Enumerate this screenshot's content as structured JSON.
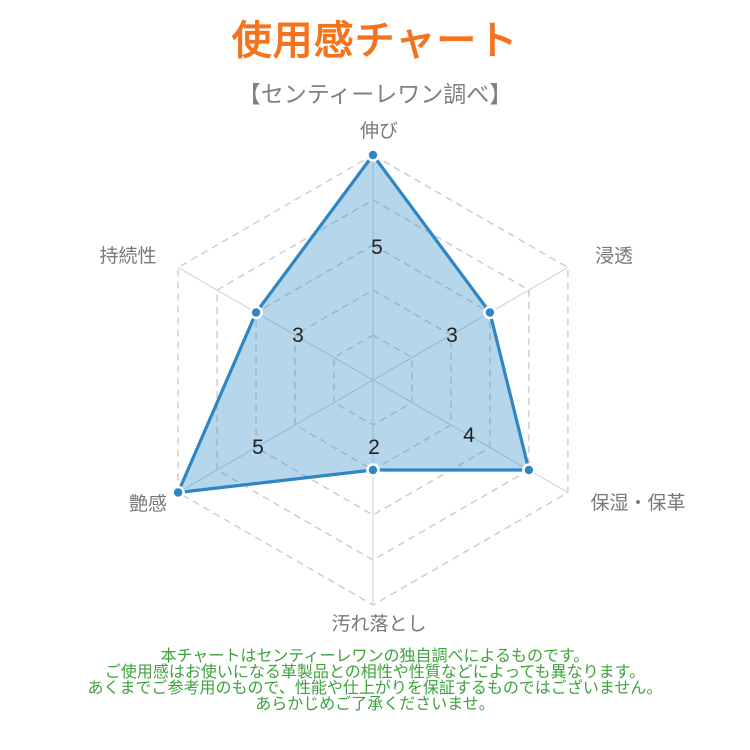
{
  "page": {
    "title": "使用感チャート",
    "subtitle": "【センティーレワン調べ】",
    "footer_lines": [
      "本チャートはセンティーレワンの独自調べによるものです。",
      "ご使用感はお使いになる革製品との相性や性質などによっても異なります。",
      "あくまでご参考用のもので、性能や仕上がりを保証するものではございません。",
      "あらかじめご了承くださいませ。"
    ]
  },
  "colors": {
    "title_orange": "#f4731c",
    "subtitle_gray": "#7f7f7f",
    "axis_label_gray": "#787878",
    "value_label_dark": "#222222",
    "footer_green": "#3da23d",
    "series_stroke_blue": "#2e86c5",
    "series_fill_light_blue": "rgba(52,140,200,0.36)",
    "grid_dash_gray": "#cccccc",
    "spoke_gray": "#d6d6d6",
    "dot_ring_white": "#ffffff"
  },
  "chart_data": {
    "type": "radar",
    "title": "使用感チャート",
    "subtitle": "【センティーレワン調べ】",
    "categories": [
      "伸び",
      "浸透",
      "保湿・保革",
      "汚れ落とし",
      "艶感",
      "持続性"
    ],
    "values": [
      5,
      3,
      4,
      2,
      5,
      3
    ],
    "scale_min": 0,
    "scale_max": 5,
    "levels": 5,
    "grid_shape": "hexagon",
    "grid_style": "dashed",
    "start_axis": "top",
    "direction": "clockwise",
    "data_labels_shown": true,
    "legend": "none"
  }
}
